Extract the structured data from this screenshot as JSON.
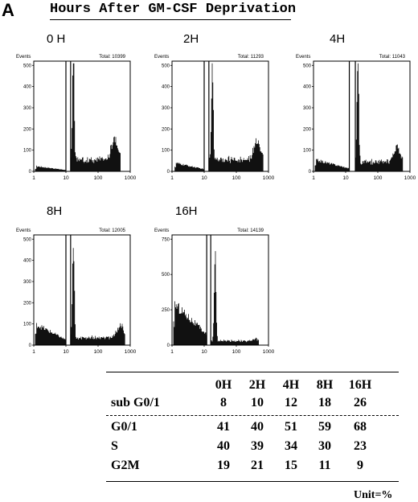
{
  "panel_label": "A",
  "heading": "Hours After GM-CSF Deprivation",
  "chart_data": [
    {
      "type": "area",
      "title": "0 H",
      "ylabel": "Events",
      "total_label": "Total: 10399",
      "xscale": "log",
      "xlim": [
        1,
        1000
      ],
      "ylim": [
        0,
        520
      ],
      "xticks": [
        1,
        10,
        100,
        1000
      ],
      "yticks": [
        0,
        100,
        200,
        300,
        400,
        500
      ],
      "gate": [
        10,
        14
      ],
      "profile": {
        "sub_start": 1.1,
        "sub_level": 25,
        "g1_peak": 17,
        "g1_height": 500,
        "g1_width": 0.028,
        "s_level": 55,
        "g2_peak": 330,
        "g2_height": 100,
        "g2_width": 0.1,
        "end": 500
      }
    },
    {
      "type": "area",
      "title": "2H",
      "ylabel": "Events",
      "total_label": "Total: 11293",
      "xscale": "log",
      "xlim": [
        1,
        1000
      ],
      "ylim": [
        0,
        520
      ],
      "xticks": [
        1,
        10,
        100,
        1000
      ],
      "yticks": [
        0,
        100,
        200,
        300,
        400,
        500
      ],
      "gate": [
        10,
        14
      ],
      "profile": {
        "sub_start": 1.2,
        "sub_level": 40,
        "g1_peak": 18,
        "g1_height": 500,
        "g1_width": 0.028,
        "s_level": 55,
        "g2_peak": 430,
        "g2_height": 95,
        "g2_width": 0.09,
        "end": 700
      }
    },
    {
      "type": "area",
      "title": "4H",
      "ylabel": "Events",
      "total_label": "Total: 11043",
      "xscale": "log",
      "xlim": [
        1,
        1000
      ],
      "ylim": [
        0,
        520
      ],
      "xticks": [
        1,
        10,
        100,
        1000
      ],
      "yticks": [
        0,
        100,
        200,
        300,
        400,
        500
      ],
      "gate": [
        13,
        20
      ],
      "profile": {
        "sub_start": 1.1,
        "sub_level": 55,
        "g1_peak": 24,
        "g1_height": 500,
        "g1_width": 0.028,
        "s_level": 45,
        "g2_peak": 400,
        "g2_height": 70,
        "g2_width": 0.1,
        "end": 600
      }
    },
    {
      "type": "area",
      "title": "8H",
      "ylabel": "Events",
      "total_label": "Total: 12005",
      "xscale": "log",
      "xlim": [
        1,
        1000
      ],
      "ylim": [
        0,
        520
      ],
      "xticks": [
        1,
        10,
        100,
        1000
      ],
      "yticks": [
        0,
        100,
        200,
        300,
        400,
        500
      ],
      "gate": [
        10,
        14
      ],
      "profile": {
        "sub_start": 1.1,
        "sub_level": 100,
        "g1_peak": 17,
        "g1_height": 500,
        "g1_width": 0.028,
        "s_level": 35,
        "g2_peak": 500,
        "g2_height": 60,
        "g2_width": 0.1,
        "end": 700
      }
    },
    {
      "type": "area",
      "title": "16H",
      "ylabel": "Events",
      "total_label": "Total: 14139",
      "xscale": "log",
      "xlim": [
        1,
        1000
      ],
      "ylim": [
        0,
        780
      ],
      "xticks": [
        1,
        10,
        100,
        1000
      ],
      "yticks": [
        0,
        250,
        500,
        750
      ],
      "gate": [
        12,
        16
      ],
      "profile": {
        "sub_start": 1.1,
        "sub_level": 300,
        "g1_peak": 22,
        "g1_height": 650,
        "g1_width": 0.028,
        "s_level": 30,
        "g2_peak": 400,
        "g2_height": 10,
        "g2_width": 0.1,
        "end": 500
      }
    }
  ],
  "table": {
    "columns": [
      "0H",
      "2H",
      "4H",
      "8H",
      "16H"
    ],
    "rows": [
      {
        "label": "sub G0/1",
        "values": [
          "8",
          "10",
          "12",
          "18",
          "26"
        ]
      },
      {
        "label": "G0/1",
        "values": [
          "41",
          "40",
          "51",
          "59",
          "68"
        ]
      },
      {
        "label": "S",
        "values": [
          "40",
          "39",
          "34",
          "30",
          "23"
        ]
      },
      {
        "label": "G2M",
        "values": [
          "19",
          "21",
          "15",
          "11",
          "9"
        ]
      }
    ],
    "unit": "Unit=%"
  }
}
